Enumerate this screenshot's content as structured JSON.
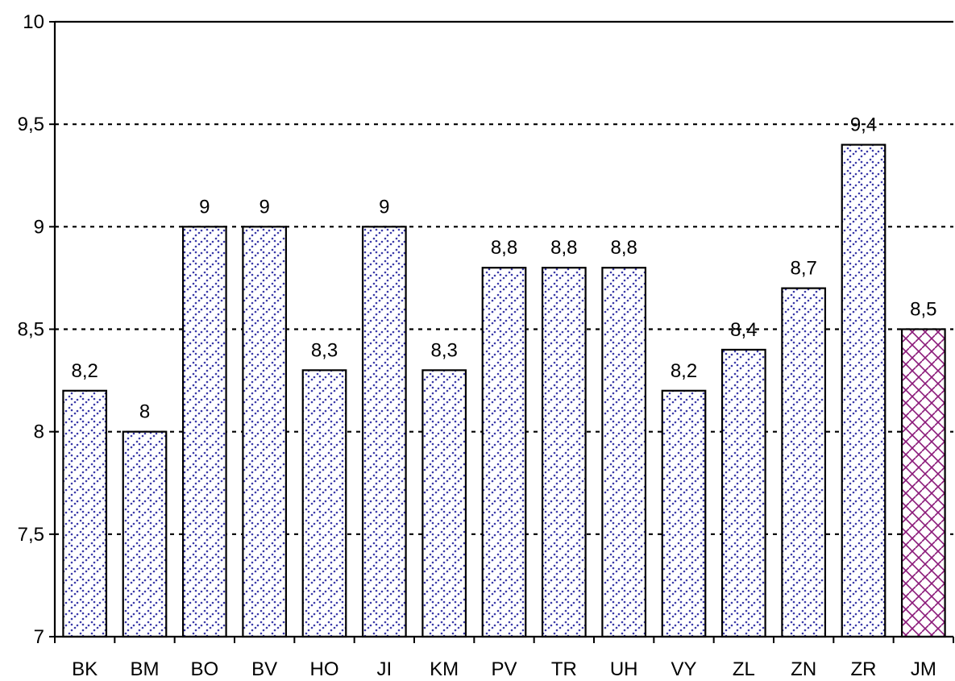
{
  "chart_data": {
    "type": "bar",
    "title": "",
    "xlabel": "",
    "ylabel": "",
    "categories": [
      "BK",
      "BM",
      "BO",
      "BV",
      "HO",
      "JI",
      "KM",
      "PV",
      "TR",
      "UH",
      "VY",
      "ZL",
      "ZN",
      "ZR",
      "JM"
    ],
    "values": [
      8.2,
      8,
      9,
      9,
      8.3,
      9,
      8.3,
      8.8,
      8.8,
      8.8,
      8.2,
      8.4,
      8.7,
      9.4,
      8.5
    ],
    "data_labels": [
      "8,2",
      "8",
      "9",
      "9",
      "8,3",
      "9",
      "8,3",
      "8,8",
      "8,8",
      "8,8",
      "8,2",
      "8,4",
      "8,7",
      "9,4",
      "8,5"
    ],
    "ylim": [
      7,
      10
    ],
    "y_ticks": [
      7,
      7.5,
      8,
      8.5,
      9,
      9.5,
      10
    ],
    "y_tick_labels": [
      "7",
      "7,5",
      "8",
      "8,5",
      "9",
      "9,5",
      "10"
    ],
    "grid": "horizontal dashed",
    "legend": "none",
    "highlight_category": "JM",
    "colors": {
      "bar_fill": "#ffffff",
      "bar_pattern": "#3a3aa8",
      "highlight_pattern": "#8b1a7a",
      "axis": "#000000"
    }
  }
}
